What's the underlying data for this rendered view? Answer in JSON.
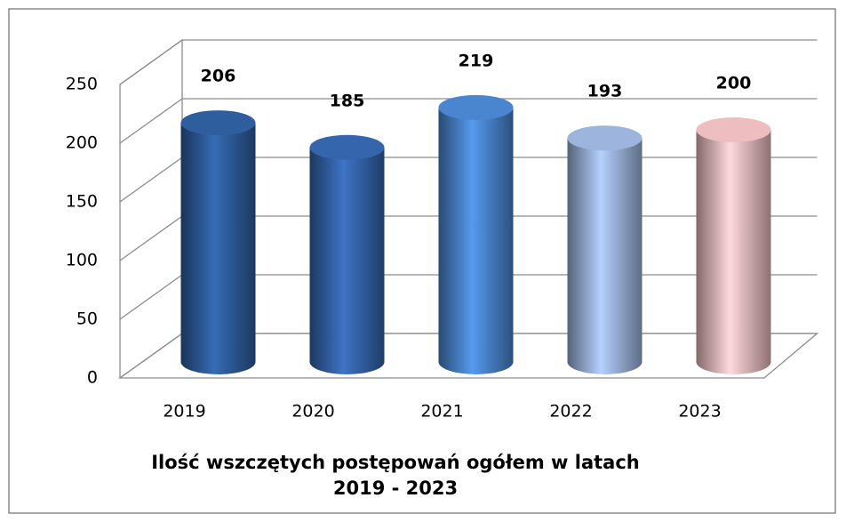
{
  "chart_data": {
    "type": "bar3d",
    "title": [
      "Ilość wszczętych postępowań ogółem w latach",
      "2019 - 2023"
    ],
    "categories": [
      "2019",
      "2020",
      "2021",
      "2022",
      "2023"
    ],
    "values": [
      206,
      185,
      219,
      193,
      200
    ],
    "colors": [
      "#2f5e9e",
      "#3565ad",
      "#4a86cf",
      "#9db5dd",
      "#eebdc0"
    ],
    "ylim": [
      0,
      250
    ],
    "yticks": [
      0,
      50,
      100,
      150,
      200,
      250
    ],
    "grid": true
  }
}
